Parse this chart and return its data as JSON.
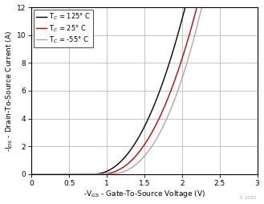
{
  "xlabel": "-V$_{GS}$ - Gate-To-Source Voltage (V)",
  "ylabel": "-I$_{DS}$ - Drain-To-Source Current (A)",
  "xlim": [
    0,
    3
  ],
  "ylim": [
    0,
    12
  ],
  "xticks": [
    0,
    0.5,
    1.0,
    1.5,
    2.0,
    2.5,
    3.0
  ],
  "yticks": [
    0,
    2,
    4,
    6,
    8,
    10,
    12
  ],
  "legend": [
    {
      "label": "T$_C$ = 125° C",
      "color": "#000000",
      "lw": 1.0
    },
    {
      "label": "T$_C$ = 25° C",
      "color": "#cc0000",
      "lw": 1.0
    },
    {
      "label": "T$_C$ = -55° C",
      "color": "#aaaaaa",
      "lw": 1.0
    }
  ],
  "curves": {
    "tc125": {
      "vth": 0.82,
      "k": 7.8,
      "n": 2.15,
      "color": "#000000",
      "lw": 1.0
    },
    "tc25": {
      "vth": 0.92,
      "k": 7.0,
      "n": 2.2,
      "color": "#cc0000",
      "lw": 1.0
    },
    "tc_55": {
      "vth": 1.02,
      "k": 7.2,
      "n": 2.35,
      "color": "#aaaaaa",
      "lw": 1.0
    }
  },
  "watermark": "© 2022",
  "background_color": "#ffffff",
  "grid_color": "#bbbbbb"
}
